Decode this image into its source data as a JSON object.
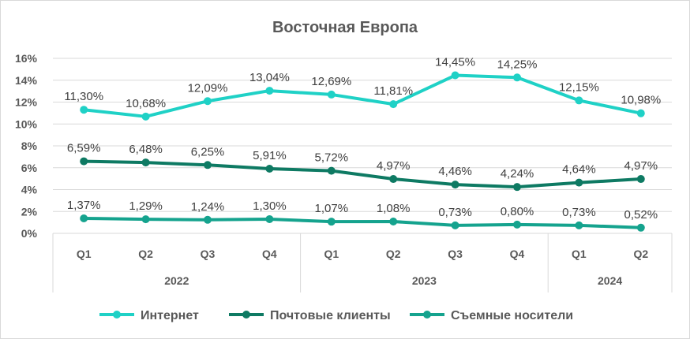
{
  "chart_data": {
    "type": "line",
    "title": "Восточная Европа",
    "xlabel": "",
    "ylabel": "",
    "ylim": [
      0,
      16
    ],
    "yticks": [
      "0%",
      "2%",
      "4%",
      "6%",
      "8%",
      "10%",
      "12%",
      "14%",
      "16%"
    ],
    "grid": true,
    "legend_position": "bottom",
    "categories": [
      "Q1",
      "Q2",
      "Q3",
      "Q4",
      "Q1",
      "Q2",
      "Q3",
      "Q4",
      "Q1",
      "Q2"
    ],
    "year_groups": [
      {
        "label": "2022",
        "span": 4
      },
      {
        "label": "2023",
        "span": 4
      },
      {
        "label": "2024",
        "span": 2
      }
    ],
    "series": [
      {
        "name": "Интернет",
        "color": "#1fd1c6",
        "values": [
          11.3,
          10.68,
          12.09,
          13.04,
          12.69,
          11.81,
          14.45,
          14.25,
          12.15,
          10.98
        ],
        "labels": [
          "11,30%",
          "10,68%",
          "12,09%",
          "13,04%",
          "12,69%",
          "11,81%",
          "14,45%",
          "14,25%",
          "12,15%",
          "10,98%"
        ]
      },
      {
        "name": "Почтовые клиенты",
        "color": "#0e7a63",
        "values": [
          6.59,
          6.48,
          6.25,
          5.91,
          5.72,
          4.97,
          4.46,
          4.24,
          4.64,
          4.97
        ],
        "labels": [
          "6,59%",
          "6,48%",
          "6,25%",
          "5,91%",
          "5,72%",
          "4,97%",
          "4,46%",
          "4,24%",
          "4,64%",
          "4,97%"
        ]
      },
      {
        "name": "Съемные носители",
        "color": "#15a38e",
        "values": [
          1.37,
          1.29,
          1.24,
          1.3,
          1.07,
          1.08,
          0.73,
          0.8,
          0.73,
          0.52
        ],
        "labels": [
          "1,37%",
          "1,29%",
          "1,24%",
          "1,30%",
          "1,07%",
          "1,08%",
          "0,73%",
          "0,80%",
          "0,73%",
          "0,52%"
        ]
      }
    ]
  }
}
